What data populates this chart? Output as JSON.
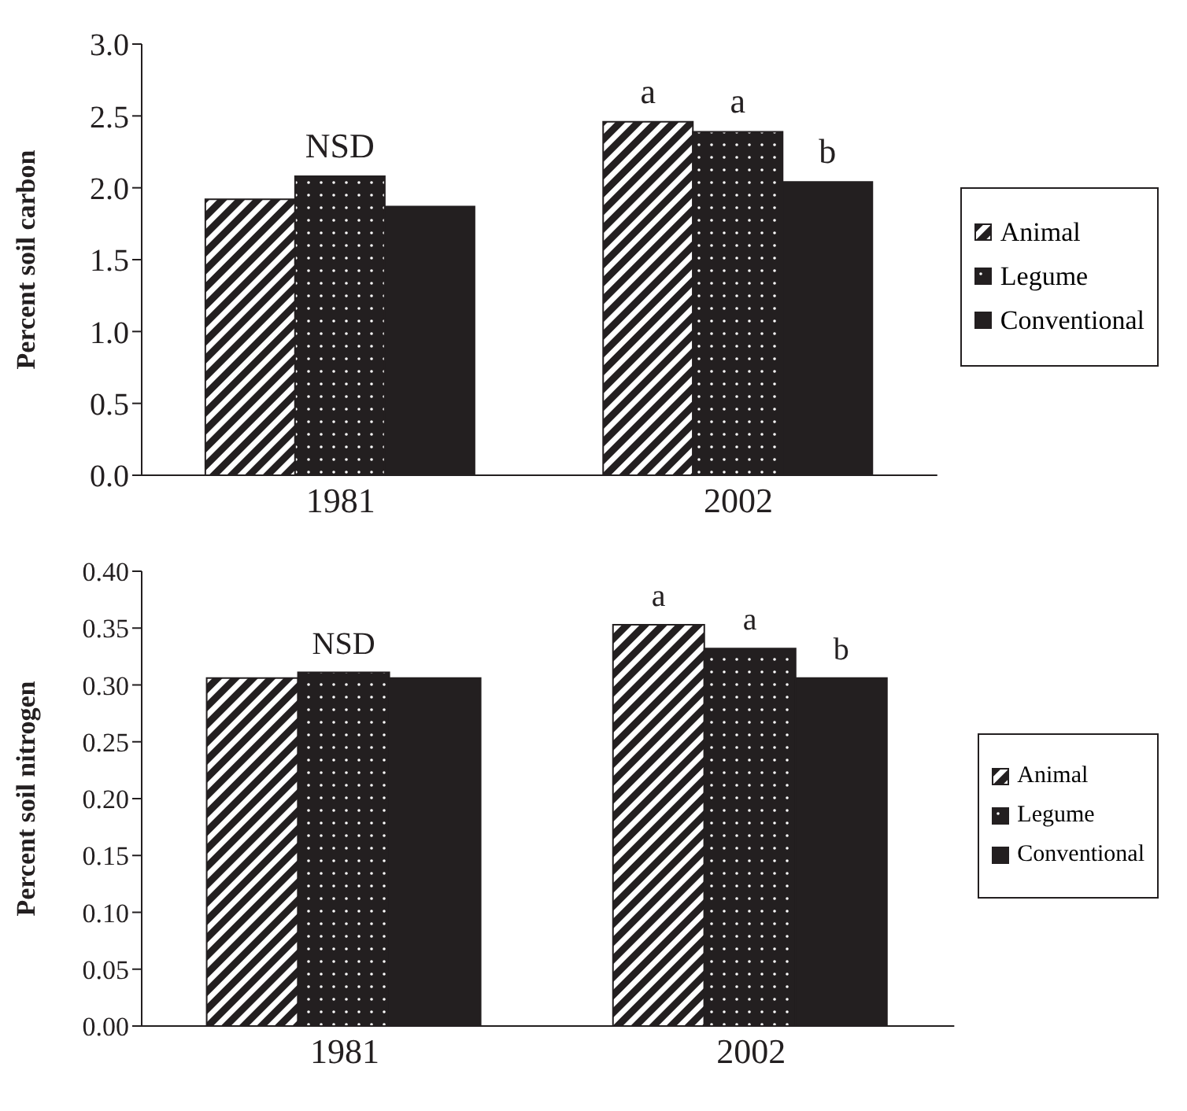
{
  "chart_data": [
    {
      "type": "bar",
      "ylabel": "Percent soil carbon",
      "categories": [
        "1981",
        "2002"
      ],
      "series": [
        {
          "name": "Animal",
          "color": "#231f20",
          "values": [
            1.92,
            2.46
          ]
        },
        {
          "name": "Legume",
          "color": "#231f20",
          "values": [
            2.08,
            2.39
          ]
        },
        {
          "name": "Conventional",
          "color": "#231f20",
          "values": [
            1.87,
            2.04
          ]
        }
      ],
      "ylim": [
        0,
        3
      ],
      "yticks": [
        {
          "value": 0,
          "label": "0.0"
        },
        {
          "value": 0.5,
          "label": "0.5"
        },
        {
          "value": 1,
          "label": "1.0"
        },
        {
          "value": 1.5,
          "label": "1.5"
        },
        {
          "value": 2,
          "label": "2.0"
        },
        {
          "value": 2.5,
          "label": "2.5"
        },
        {
          "value": 3,
          "label": "3.0"
        }
      ],
      "annotations": [
        "NSD",
        "a",
        "a",
        "b"
      ],
      "legend": "right",
      "grid": false
    },
    {
      "type": "bar",
      "ylabel": "Percent soil nitrogen",
      "categories": [
        "1981",
        "2002"
      ],
      "series": [
        {
          "name": "Animal",
          "color": "#231f20",
          "values": [
            0.306,
            0.353
          ]
        },
        {
          "name": "Legume",
          "color": "#231f20",
          "values": [
            0.311,
            0.332
          ]
        },
        {
          "name": "Conventional",
          "color": "#231f20",
          "values": [
            0.306,
            0.306
          ]
        }
      ],
      "ylim": [
        0,
        0.4
      ],
      "yticks": [
        {
          "value": 0,
          "label": "0.00"
        },
        {
          "value": 0.05,
          "label": "0.05"
        },
        {
          "value": 0.1,
          "label": "0.10"
        },
        {
          "value": 0.15,
          "label": "0.15"
        },
        {
          "value": 0.2,
          "label": "0.20"
        },
        {
          "value": 0.25,
          "label": "0.25"
        },
        {
          "value": 0.3,
          "label": "0.30"
        },
        {
          "value": 0.35,
          "label": "0.35"
        },
        {
          "value": 0.4,
          "label": "0.40"
        }
      ],
      "annotations": [
        "NSD",
        "a",
        "a",
        "b"
      ],
      "legend": "right",
      "grid": false
    }
  ]
}
